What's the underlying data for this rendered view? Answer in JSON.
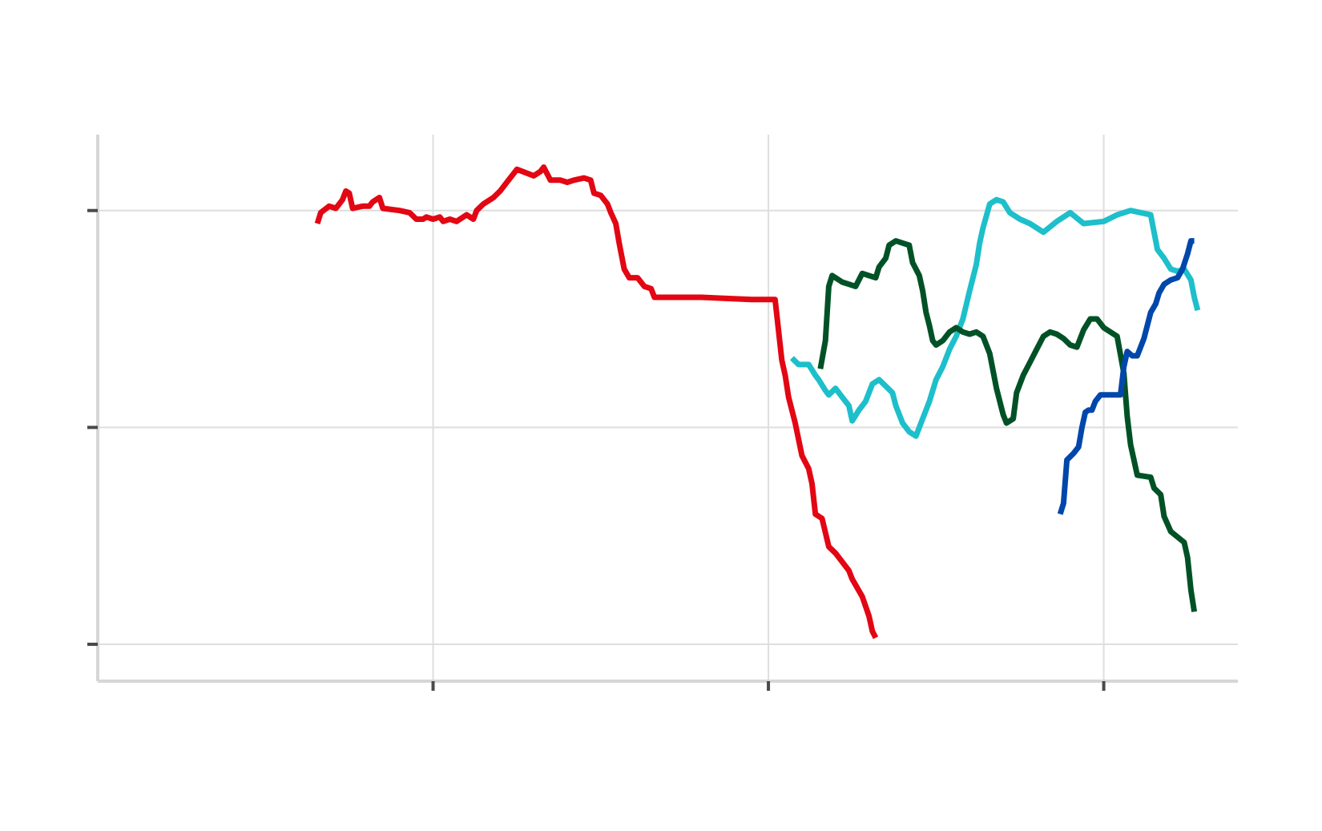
{
  "chart_data": {
    "type": "line",
    "title": "",
    "xlabel": "",
    "ylabel": "",
    "xlim": [
      0,
      3.4
    ],
    "ylim": [
      -0.17,
      2.35
    ],
    "x_ticks": [
      1,
      2,
      3
    ],
    "y_ticks": [
      0,
      1,
      2
    ],
    "grid": true,
    "legend": "none",
    "series": [
      {
        "color": "#e30613",
        "points": [
          [
            0.655,
            1.94
          ],
          [
            0.665,
            1.99
          ],
          [
            0.69,
            2.02
          ],
          [
            0.71,
            2.01
          ],
          [
            0.73,
            2.05
          ],
          [
            0.74,
            2.09
          ],
          [
            0.75,
            2.08
          ],
          [
            0.76,
            2.01
          ],
          [
            0.79,
            2.02
          ],
          [
            0.81,
            2.02
          ],
          [
            0.82,
            2.04
          ],
          [
            0.84,
            2.06
          ],
          [
            0.85,
            2.01
          ],
          [
            0.9,
            2.0
          ],
          [
            0.93,
            1.99
          ],
          [
            0.95,
            1.96
          ],
          [
            0.97,
            1.96
          ],
          [
            0.98,
            1.97
          ],
          [
            1.0,
            1.96
          ],
          [
            1.02,
            1.97
          ],
          [
            1.03,
            1.95
          ],
          [
            1.05,
            1.96
          ],
          [
            1.07,
            1.95
          ],
          [
            1.1,
            1.98
          ],
          [
            1.12,
            1.96
          ],
          [
            1.13,
            2.0
          ],
          [
            1.15,
            2.03
          ],
          [
            1.18,
            2.06
          ],
          [
            1.2,
            2.09
          ],
          [
            1.22,
            2.13
          ],
          [
            1.25,
            2.19
          ],
          [
            1.3,
            2.16
          ],
          [
            1.32,
            2.18
          ],
          [
            1.33,
            2.2
          ],
          [
            1.35,
            2.14
          ],
          [
            1.38,
            2.14
          ],
          [
            1.4,
            2.13
          ],
          [
            1.42,
            2.14
          ],
          [
            1.45,
            2.15
          ],
          [
            1.47,
            2.14
          ],
          [
            1.48,
            2.08
          ],
          [
            1.5,
            2.07
          ],
          [
            1.52,
            2.03
          ],
          [
            1.53,
            1.99
          ],
          [
            1.545,
            1.94
          ],
          [
            1.555,
            1.85
          ],
          [
            1.57,
            1.73
          ],
          [
            1.585,
            1.69
          ],
          [
            1.61,
            1.69
          ],
          [
            1.63,
            1.65
          ],
          [
            1.65,
            1.64
          ],
          [
            1.66,
            1.6
          ],
          [
            1.8,
            1.6
          ],
          [
            1.95,
            1.59
          ],
          [
            2.02,
            1.59
          ],
          [
            2.03,
            1.45
          ],
          [
            2.04,
            1.31
          ],
          [
            2.05,
            1.24
          ],
          [
            2.06,
            1.14
          ],
          [
            2.08,
            1.02
          ],
          [
            2.1,
            0.87
          ],
          [
            2.12,
            0.81
          ],
          [
            2.13,
            0.74
          ],
          [
            2.14,
            0.6
          ],
          [
            2.16,
            0.58
          ],
          [
            2.18,
            0.45
          ],
          [
            2.2,
            0.42
          ],
          [
            2.24,
            0.34
          ],
          [
            2.25,
            0.3
          ],
          [
            2.28,
            0.22
          ],
          [
            2.3,
            0.13
          ],
          [
            2.31,
            0.06
          ],
          [
            2.32,
            0.03
          ]
        ]
      },
      {
        "color": "#1dbfca",
        "points": [
          [
            2.07,
            1.32
          ],
          [
            2.09,
            1.29
          ],
          [
            2.12,
            1.29
          ],
          [
            2.14,
            1.24
          ],
          [
            2.15,
            1.22
          ],
          [
            2.17,
            1.17
          ],
          [
            2.18,
            1.15
          ],
          [
            2.2,
            1.18
          ],
          [
            2.22,
            1.14
          ],
          [
            2.24,
            1.1
          ],
          [
            2.25,
            1.03
          ],
          [
            2.27,
            1.08
          ],
          [
            2.29,
            1.12
          ],
          [
            2.31,
            1.2
          ],
          [
            2.33,
            1.22
          ],
          [
            2.35,
            1.19
          ],
          [
            2.37,
            1.16
          ],
          [
            2.38,
            1.1
          ],
          [
            2.4,
            1.02
          ],
          [
            2.42,
            0.98
          ],
          [
            2.44,
            0.96
          ],
          [
            2.46,
            1.04
          ],
          [
            2.48,
            1.12
          ],
          [
            2.5,
            1.22
          ],
          [
            2.52,
            1.28
          ],
          [
            2.54,
            1.36
          ],
          [
            2.56,
            1.42
          ],
          [
            2.58,
            1.5
          ],
          [
            2.6,
            1.63
          ],
          [
            2.62,
            1.75
          ],
          [
            2.63,
            1.85
          ],
          [
            2.64,
            1.92
          ],
          [
            2.66,
            2.03
          ],
          [
            2.68,
            2.05
          ],
          [
            2.7,
            2.04
          ],
          [
            2.72,
            1.99
          ],
          [
            2.75,
            1.96
          ],
          [
            2.78,
            1.94
          ],
          [
            2.82,
            1.9
          ],
          [
            2.86,
            1.95
          ],
          [
            2.9,
            1.99
          ],
          [
            2.94,
            1.94
          ],
          [
            3.0,
            1.95
          ],
          [
            3.04,
            1.98
          ],
          [
            3.08,
            2.0
          ],
          [
            3.14,
            1.98
          ],
          [
            3.16,
            1.82
          ],
          [
            3.18,
            1.78
          ],
          [
            3.2,
            1.73
          ],
          [
            3.22,
            1.72
          ],
          [
            3.24,
            1.73
          ],
          [
            3.26,
            1.68
          ],
          [
            3.27,
            1.6
          ],
          [
            3.28,
            1.54
          ]
        ]
      },
      {
        "color": "#005226",
        "points": [
          [
            2.155,
            1.27
          ],
          [
            2.17,
            1.4
          ],
          [
            2.18,
            1.65
          ],
          [
            2.19,
            1.7
          ],
          [
            2.2,
            1.69
          ],
          [
            2.22,
            1.67
          ],
          [
            2.24,
            1.66
          ],
          [
            2.26,
            1.65
          ],
          [
            2.28,
            1.71
          ],
          [
            2.3,
            1.7
          ],
          [
            2.32,
            1.69
          ],
          [
            2.33,
            1.74
          ],
          [
            2.35,
            1.78
          ],
          [
            2.36,
            1.84
          ],
          [
            2.38,
            1.86
          ],
          [
            2.4,
            1.85
          ],
          [
            2.42,
            1.84
          ],
          [
            2.43,
            1.76
          ],
          [
            2.45,
            1.7
          ],
          [
            2.46,
            1.63
          ],
          [
            2.47,
            1.53
          ],
          [
            2.48,
            1.47
          ],
          [
            2.49,
            1.4
          ],
          [
            2.5,
            1.38
          ],
          [
            2.52,
            1.4
          ],
          [
            2.54,
            1.44
          ],
          [
            2.56,
            1.46
          ],
          [
            2.58,
            1.44
          ],
          [
            2.6,
            1.43
          ],
          [
            2.62,
            1.44
          ],
          [
            2.64,
            1.42
          ],
          [
            2.66,
            1.34
          ],
          [
            2.68,
            1.18
          ],
          [
            2.7,
            1.06
          ],
          [
            2.71,
            1.02
          ],
          [
            2.73,
            1.04
          ],
          [
            2.74,
            1.16
          ],
          [
            2.76,
            1.24
          ],
          [
            2.78,
            1.3
          ],
          [
            2.8,
            1.36
          ],
          [
            2.82,
            1.42
          ],
          [
            2.84,
            1.44
          ],
          [
            2.86,
            1.43
          ],
          [
            2.88,
            1.41
          ],
          [
            2.9,
            1.38
          ],
          [
            2.92,
            1.37
          ],
          [
            2.94,
            1.45
          ],
          [
            2.96,
            1.5
          ],
          [
            2.98,
            1.5
          ],
          [
            3.0,
            1.46
          ],
          [
            3.04,
            1.42
          ],
          [
            3.06,
            1.25
          ],
          [
            3.07,
            1.05
          ],
          [
            3.08,
            0.92
          ],
          [
            3.09,
            0.85
          ],
          [
            3.1,
            0.78
          ],
          [
            3.14,
            0.77
          ],
          [
            3.15,
            0.72
          ],
          [
            3.17,
            0.69
          ],
          [
            3.18,
            0.59
          ],
          [
            3.2,
            0.52
          ],
          [
            3.24,
            0.47
          ],
          [
            3.25,
            0.4
          ],
          [
            3.26,
            0.25
          ],
          [
            3.27,
            0.15
          ]
        ]
      },
      {
        "color": "#0047ab",
        "points": [
          [
            2.87,
            0.6
          ],
          [
            2.88,
            0.65
          ],
          [
            2.89,
            0.85
          ],
          [
            2.91,
            0.88
          ],
          [
            2.925,
            0.91
          ],
          [
            2.935,
            1.0
          ],
          [
            2.945,
            1.07
          ],
          [
            2.955,
            1.08
          ],
          [
            2.965,
            1.08
          ],
          [
            2.975,
            1.12
          ],
          [
            2.99,
            1.15
          ],
          [
            3.0,
            1.15
          ],
          [
            3.05,
            1.15
          ],
          [
            3.06,
            1.28
          ],
          [
            3.07,
            1.35
          ],
          [
            3.085,
            1.33
          ],
          [
            3.1,
            1.33
          ],
          [
            3.12,
            1.41
          ],
          [
            3.14,
            1.53
          ],
          [
            3.155,
            1.57
          ],
          [
            3.165,
            1.62
          ],
          [
            3.18,
            1.66
          ],
          [
            3.2,
            1.68
          ],
          [
            3.22,
            1.69
          ],
          [
            3.235,
            1.73
          ],
          [
            3.25,
            1.8
          ],
          [
            3.26,
            1.86
          ],
          [
            3.27,
            1.86
          ]
        ]
      }
    ]
  }
}
